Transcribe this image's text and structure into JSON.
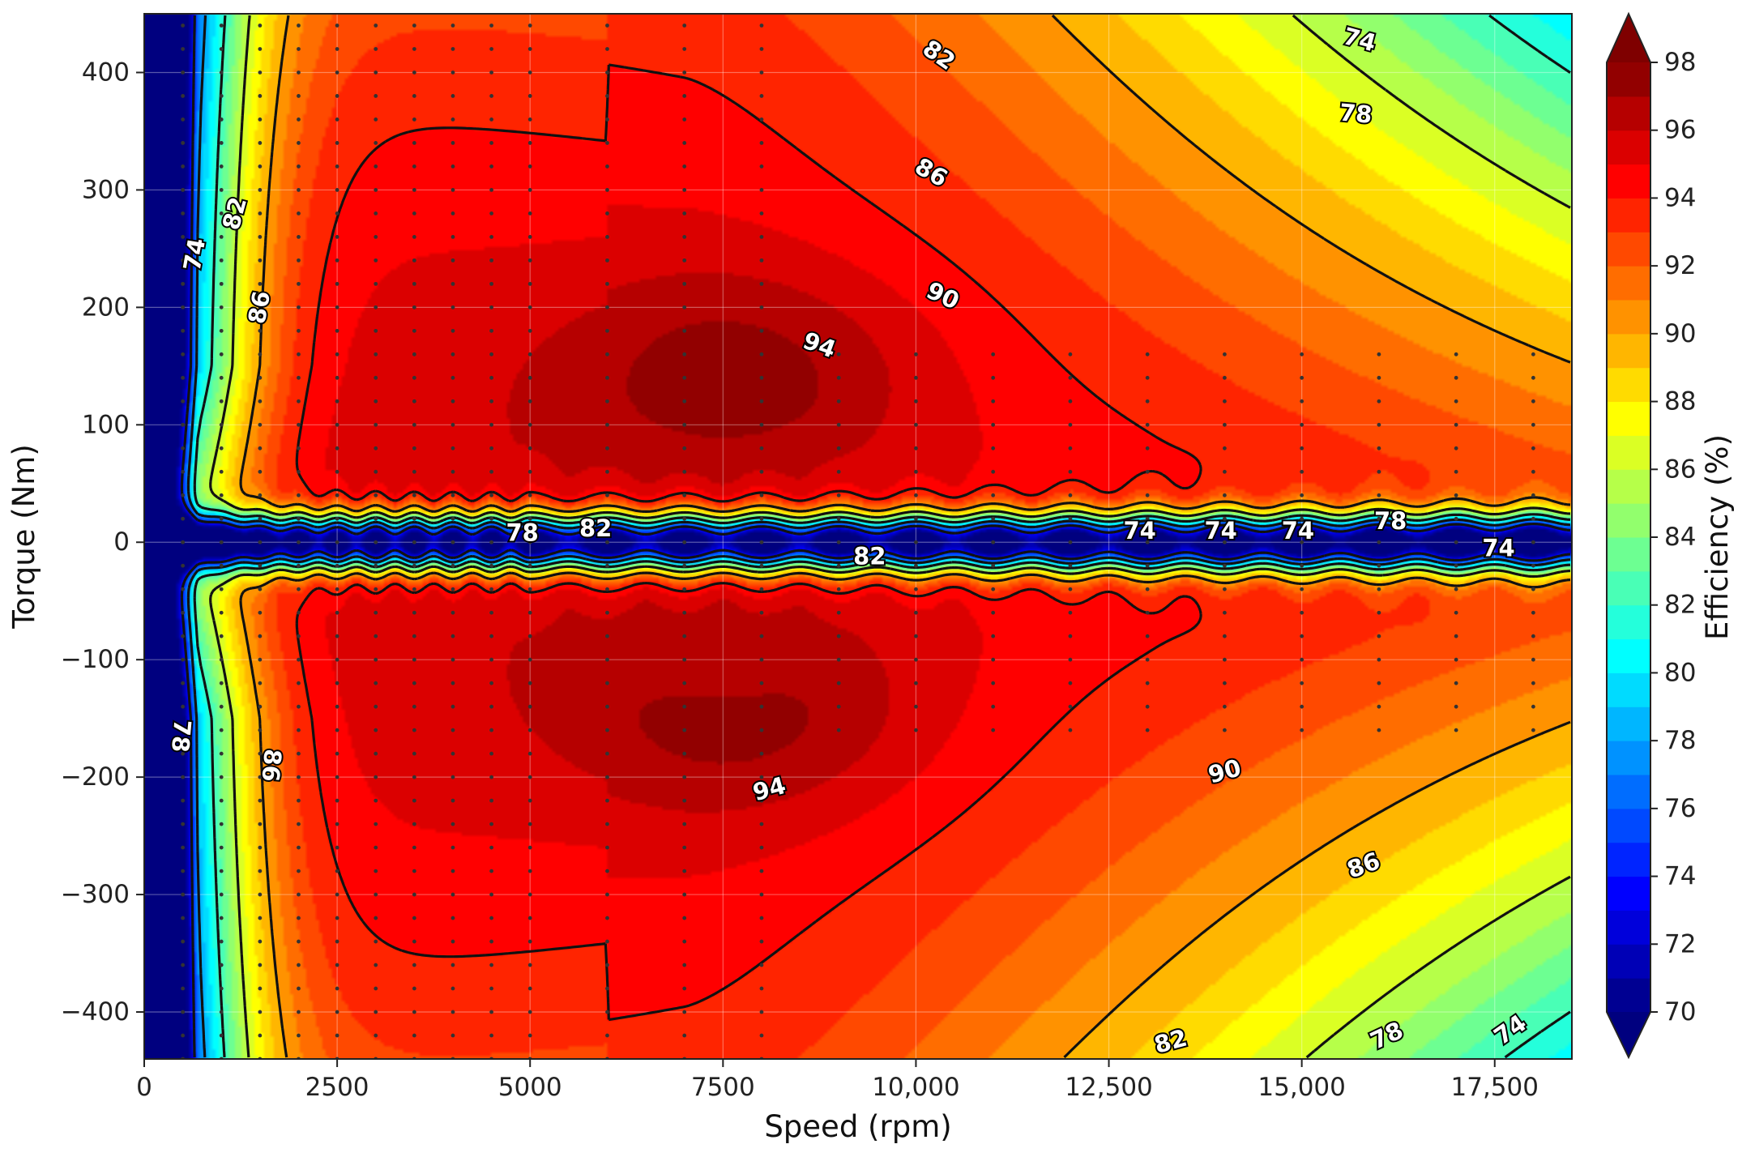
{
  "chart_data": {
    "type": "contour",
    "title": "",
    "xlabel": "Speed (rpm)",
    "ylabel": "Torque (Nm)",
    "xlim": [
      0,
      18500
    ],
    "ylim": [
      -440,
      450
    ],
    "x_ticks": [
      0,
      2500,
      5000,
      7500,
      10000,
      12500,
      15000,
      17500
    ],
    "x_tick_labels": [
      "0",
      "2500",
      "5000",
      "7500",
      "10,000",
      "12,500",
      "15,000",
      "17,500"
    ],
    "y_ticks": [
      400,
      300,
      200,
      100,
      0,
      -100,
      -200,
      -300,
      -400
    ],
    "y_tick_labels": [
      "400",
      "300",
      "200",
      "100",
      "0",
      "−100",
      "−200",
      "−300",
      "−400"
    ],
    "grid": true,
    "colorbar": {
      "label": "Efficiency (%)",
      "range": [
        70,
        98
      ],
      "ticks": [
        70,
        72,
        74,
        76,
        78,
        80,
        82,
        84,
        86,
        88,
        90,
        92,
        94,
        96,
        98
      ],
      "tick_labels": [
        "70",
        "72",
        "74",
        "76",
        "78",
        "80",
        "82",
        "84",
        "86",
        "88",
        "90",
        "92",
        "94",
        "96",
        "98"
      ],
      "extend": "both",
      "colormap": "jet"
    },
    "contour_levels": [
      74,
      78,
      82,
      86,
      90,
      94
    ],
    "contour_labels": [
      {
        "text": "74",
        "x": 650,
        "y": 245,
        "angle": -80
      },
      {
        "text": "82",
        "x": 1170,
        "y": 280,
        "angle": -75
      },
      {
        "text": "86",
        "x": 1490,
        "y": 200,
        "angle": -80
      },
      {
        "text": "78",
        "x": 480,
        "y": -165,
        "angle": 95
      },
      {
        "text": "86",
        "x": 1650,
        "y": -190,
        "angle": 95
      },
      {
        "text": "82",
        "x": 10300,
        "y": 415,
        "angle": 35
      },
      {
        "text": "74",
        "x": 15750,
        "y": 428,
        "angle": 15
      },
      {
        "text": "78",
        "x": 15700,
        "y": 365,
        "angle": 5
      },
      {
        "text": "86",
        "x": 10200,
        "y": 315,
        "angle": 30
      },
      {
        "text": "90",
        "x": 10350,
        "y": 210,
        "angle": 25
      },
      {
        "text": "94",
        "x": 8750,
        "y": 168,
        "angle": 20
      },
      {
        "text": "78",
        "x": 4900,
        "y": 8,
        "angle": 0
      },
      {
        "text": "82",
        "x": 5850,
        "y": 12,
        "angle": 0
      },
      {
        "text": "82",
        "x": 9400,
        "y": -12,
        "angle": 0
      },
      {
        "text": "74",
        "x": 12900,
        "y": 10,
        "angle": 0
      },
      {
        "text": "74",
        "x": 13950,
        "y": 10,
        "angle": 0
      },
      {
        "text": "74",
        "x": 14950,
        "y": 10,
        "angle": 0
      },
      {
        "text": "78",
        "x": 16150,
        "y": 18,
        "angle": 0
      },
      {
        "text": "74",
        "x": 17550,
        "y": -5,
        "angle": 0
      },
      {
        "text": "94",
        "x": 8100,
        "y": -210,
        "angle": -15
      },
      {
        "text": "90",
        "x": 14000,
        "y": -195,
        "angle": -15
      },
      {
        "text": "86",
        "x": 15800,
        "y": -275,
        "angle": -20
      },
      {
        "text": "82",
        "x": 13300,
        "y": -425,
        "angle": -15
      },
      {
        "text": "78",
        "x": 16100,
        "y": -420,
        "angle": -25
      },
      {
        "text": "74",
        "x": 17700,
        "y": -415,
        "angle": -35
      }
    ],
    "peak_regions": [
      {
        "level": 94,
        "motoring_center": [
          8000,
          150
        ],
        "generating_center": [
          8000,
          -150
        ]
      }
    ],
    "operating_point_speeds": [
      500,
      1000,
      1500,
      2000,
      2500,
      3000,
      3500,
      4000,
      4500,
      5000,
      6000,
      7000,
      8000,
      9000,
      10000,
      11000,
      12000,
      13000,
      14000,
      15000,
      16000,
      17000,
      18000
    ]
  }
}
